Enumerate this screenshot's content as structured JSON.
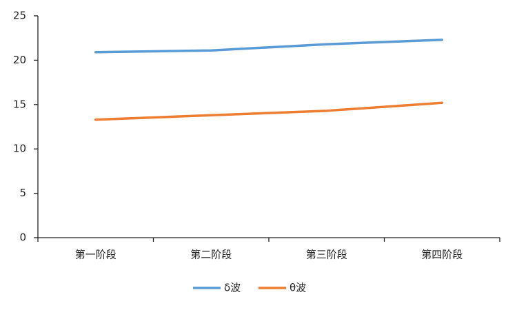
{
  "chart_data": {
    "type": "line",
    "categories": [
      "第一阶段",
      "第二阶段",
      "第三阶段",
      "第四阶段"
    ],
    "series": [
      {
        "name": "δ波",
        "color": "#5b9bd5",
        "values": [
          20.9,
          21.1,
          21.8,
          22.3
        ]
      },
      {
        "name": "θ波",
        "color": "#ed7d31",
        "values": [
          13.3,
          13.8,
          14.3,
          15.2
        ]
      }
    ],
    "ylim": [
      0,
      25
    ],
    "yticks": [
      0,
      5,
      10,
      15,
      20,
      25
    ],
    "grid": false,
    "legend": "bottom"
  }
}
